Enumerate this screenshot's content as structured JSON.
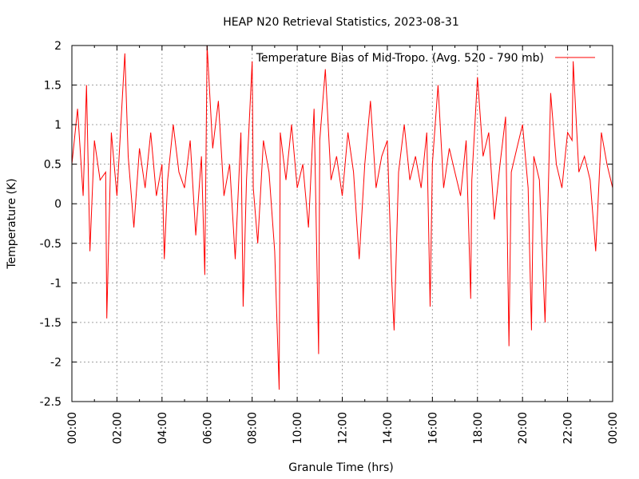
{
  "chart_data": {
    "type": "line",
    "title": "HEAP N20 Retrieval Statistics, 2023-08-31",
    "xlabel": "Granule Time (hrs)",
    "ylabel": "Temperature (K)",
    "xlim": [
      0,
      24
    ],
    "ylim": [
      -2.5,
      2
    ],
    "grid": true,
    "legend_position": "top-right",
    "x_tick_labels": [
      "00:00",
      "02:00",
      "04:00",
      "06:00",
      "08:00",
      "10:00",
      "12:00",
      "14:00",
      "16:00",
      "18:00",
      "20:00",
      "22:00",
      "00:00"
    ],
    "y_tick_labels": [
      "2",
      "1.5",
      "1",
      "0.5",
      "0",
      "-0.5",
      "-1",
      "-1.5",
      "-2",
      "-2.5"
    ],
    "series": [
      {
        "name": "Temperature Bias of Mid-Tropo. (Avg. 520 - 790 mb)",
        "color": "#ff0000",
        "x": [
          0,
          0.25,
          0.5,
          0.65,
          0.8,
          1.0,
          1.25,
          1.5,
          1.55,
          1.75,
          2.0,
          2.25,
          2.35,
          2.5,
          2.75,
          3.0,
          3.25,
          3.5,
          3.75,
          4.0,
          4.1,
          4.25,
          4.5,
          4.75,
          5.0,
          5.25,
          5.5,
          5.75,
          5.9,
          6.0,
          6.25,
          6.5,
          6.75,
          7.0,
          7.25,
          7.5,
          7.6,
          7.75,
          8.0,
          8.05,
          8.25,
          8.5,
          8.75,
          9.0,
          9.2,
          9.25,
          9.5,
          9.75,
          10.0,
          10.25,
          10.5,
          10.75,
          10.95,
          11.0,
          11.25,
          11.5,
          11.75,
          12.0,
          12.25,
          12.5,
          12.75,
          13.0,
          13.25,
          13.5,
          13.75,
          14.0,
          14.2,
          14.3,
          14.5,
          14.75,
          15.0,
          15.25,
          15.5,
          15.75,
          15.9,
          16.0,
          16.25,
          16.5,
          16.75,
          17.0,
          17.25,
          17.5,
          17.7,
          17.75,
          18.0,
          18.25,
          18.5,
          18.75,
          19.0,
          19.25,
          19.4,
          19.5,
          19.75,
          20.0,
          20.25,
          20.4,
          20.5,
          20.75,
          21.0,
          21.25,
          21.5,
          21.75,
          22.0,
          22.2,
          22.25,
          22.5,
          22.75,
          23.0,
          23.25,
          23.5,
          23.75,
          24.0
        ],
        "y": [
          0.5,
          1.2,
          0.1,
          1.5,
          -0.6,
          0.8,
          0.3,
          0.4,
          -1.45,
          0.9,
          0.1,
          1.4,
          1.9,
          0.6,
          -0.3,
          0.7,
          0.2,
          0.9,
          0.1,
          0.5,
          -0.7,
          0.3,
          1.0,
          0.4,
          0.2,
          0.8,
          -0.4,
          0.6,
          -0.9,
          2.0,
          0.7,
          1.3,
          0.1,
          0.5,
          -0.7,
          0.9,
          -1.3,
          0.3,
          1.8,
          0.2,
          -0.5,
          0.8,
          0.4,
          -0.6,
          -2.35,
          0.9,
          0.3,
          1.0,
          0.2,
          0.5,
          -0.3,
          1.2,
          -1.9,
          0.8,
          1.7,
          0.3,
          0.6,
          0.1,
          0.9,
          0.4,
          -0.7,
          0.5,
          1.3,
          0.2,
          0.6,
          0.8,
          -1.0,
          -1.6,
          0.4,
          1.0,
          0.3,
          0.6,
          0.2,
          0.9,
          -1.3,
          0.5,
          1.5,
          0.2,
          0.7,
          0.4,
          0.1,
          0.8,
          -1.2,
          0.3,
          1.6,
          0.6,
          0.9,
          -0.2,
          0.5,
          1.1,
          -1.8,
          0.4,
          0.7,
          1.0,
          0.2,
          -1.6,
          0.6,
          0.3,
          -1.5,
          1.4,
          0.5,
          0.2,
          0.9,
          0.8,
          1.8,
          0.4,
          0.6,
          0.3,
          -0.6,
          0.9,
          0.5,
          0.2
        ]
      }
    ]
  }
}
